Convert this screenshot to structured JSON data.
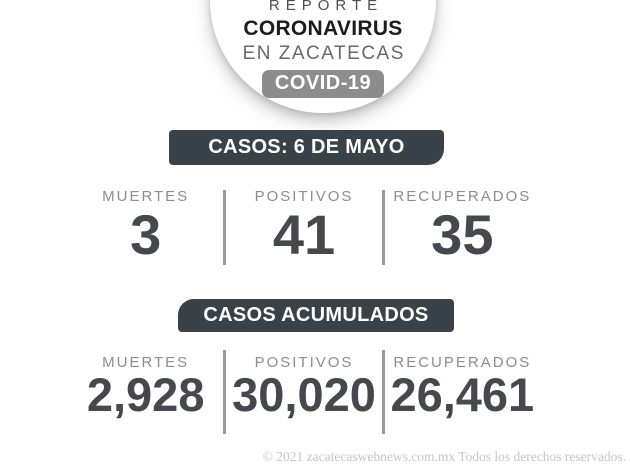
{
  "badge": {
    "line1": "REPORTE",
    "line2": "CORONAVIRUS",
    "line3": "EN ZACATECAS",
    "pill": "COVID-19"
  },
  "daily": {
    "banner": "CASOS: 6 DE MAYO",
    "stats": [
      {
        "label": "MUERTES",
        "value": "3"
      },
      {
        "label": "POSITIVOS",
        "value": "41"
      },
      {
        "label": "RECUPERADOS",
        "value": "35"
      }
    ]
  },
  "cumulative": {
    "banner": "CASOS ACUMULADOS",
    "stats": [
      {
        "label": "MUERTES",
        "value": "2,928"
      },
      {
        "label": "POSITIVOS",
        "value": "30,020"
      },
      {
        "label": "RECUPERADOS",
        "value": "26,461"
      }
    ]
  },
  "footer": {
    "copyright": "© 2021 zacatecaswebnews.com.mx Todos los derechos reservados."
  },
  "colors": {
    "banner_dark": "#394149",
    "banner_back_layer": "#b7bbbe",
    "pill_gray": "#8d8d8d",
    "label_gray": "#8d8d8d",
    "value_dark": "#45494e",
    "divider_gray": "#9b9b9b",
    "footer_gray": "#c6c6c6"
  },
  "chart_data": {
    "type": "table",
    "title": "Reporte Coronavirus en Zacatecas COVID-19",
    "sections": [
      {
        "title": "CASOS: 6 DE MAYO",
        "columns": [
          "MUERTES",
          "POSITIVOS",
          "RECUPERADOS"
        ],
        "values": [
          3,
          41,
          35
        ]
      },
      {
        "title": "CASOS ACUMULADOS",
        "columns": [
          "MUERTES",
          "POSITIVOS",
          "RECUPERADOS"
        ],
        "values": [
          2928,
          30020,
          26461
        ]
      }
    ]
  }
}
